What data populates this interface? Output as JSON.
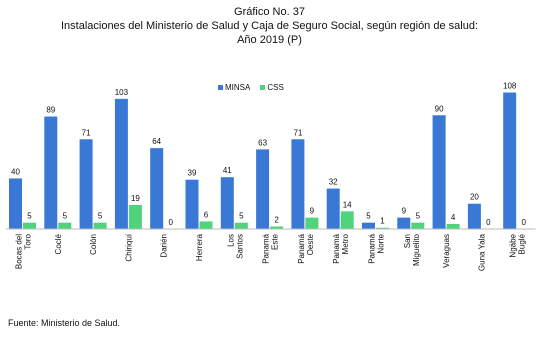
{
  "chart_data": {
    "type": "bar",
    "title": "Gráfico No. 37",
    "subtitle": "Instalaciones del Ministerio de Salud y Caja de Seguro Social, según región de salud:",
    "subtitle2": "Año 2019 (P)",
    "categories": [
      "Bocas del Toro",
      "Coclé",
      "Colón",
      "Chiriquí",
      "Darién",
      "Herrera",
      "Los Santos",
      "Panamá Este",
      "Panamá Oeste",
      "Panamá Metro",
      "Panamá Norte",
      "San Miguelito",
      "Veraguas",
      "Guna Yala",
      "Ngäbe Buglé"
    ],
    "series": [
      {
        "name": "MINSA",
        "values": [
          40,
          89,
          71,
          103,
          64,
          39,
          41,
          63,
          71,
          32,
          5,
          9,
          90,
          20,
          108
        ],
        "color": "#3a78d6"
      },
      {
        "name": "CSS",
        "values": [
          5,
          5,
          5,
          19,
          0,
          6,
          5,
          2,
          9,
          14,
          1,
          5,
          4,
          0,
          0
        ],
        "color": "#4fd47c"
      }
    ],
    "ylim": [
      0,
      110
    ],
    "grid": false,
    "legend_position": "top-center"
  },
  "source": "Fuente: Ministerio de Salud."
}
